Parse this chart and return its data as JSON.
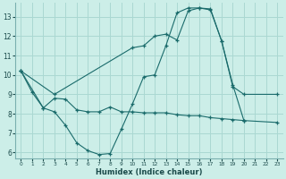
{
  "xlabel": "Humidex (Indice chaleur)",
  "bg_color": "#cceee8",
  "grid_color": "#aad8d2",
  "line_color": "#1a6b6b",
  "xlim": [
    -0.5,
    23.5
  ],
  "ylim": [
    5.7,
    13.7
  ],
  "yticks": [
    6,
    7,
    8,
    9,
    10,
    11,
    12,
    13
  ],
  "xticks": [
    0,
    1,
    2,
    3,
    4,
    5,
    6,
    7,
    8,
    9,
    10,
    11,
    12,
    13,
    14,
    15,
    16,
    17,
    18,
    19,
    20,
    21,
    22,
    23
  ],
  "line1_x": [
    0,
    1,
    2,
    3,
    4,
    5,
    6,
    7,
    8,
    9,
    10,
    11,
    12,
    13,
    14,
    15,
    16,
    17,
    18,
    19,
    20
  ],
  "line1_y": [
    10.2,
    9.1,
    8.3,
    8.1,
    7.4,
    6.5,
    6.1,
    5.9,
    5.95,
    7.2,
    8.5,
    9.9,
    10.0,
    11.5,
    13.2,
    13.45,
    13.45,
    13.4,
    11.75,
    9.5,
    7.65
  ],
  "line2_x": [
    0,
    2,
    3,
    4,
    5,
    6,
    7,
    8,
    9,
    10,
    11,
    12,
    13,
    14,
    15,
    16,
    17,
    18,
    19,
    20,
    23
  ],
  "line2_y": [
    10.2,
    8.3,
    8.8,
    8.75,
    8.2,
    8.1,
    8.1,
    8.35,
    8.1,
    8.1,
    8.05,
    8.05,
    8.05,
    7.95,
    7.9,
    7.9,
    7.8,
    7.75,
    7.7,
    7.65,
    7.55
  ],
  "line3_x": [
    0,
    3,
    10,
    11,
    12,
    13,
    14,
    15,
    16,
    17,
    18,
    19,
    20,
    23
  ],
  "line3_y": [
    10.2,
    9.0,
    11.4,
    11.5,
    12.0,
    12.1,
    11.8,
    13.3,
    13.45,
    13.35,
    11.75,
    9.4,
    9.0,
    9.0
  ]
}
